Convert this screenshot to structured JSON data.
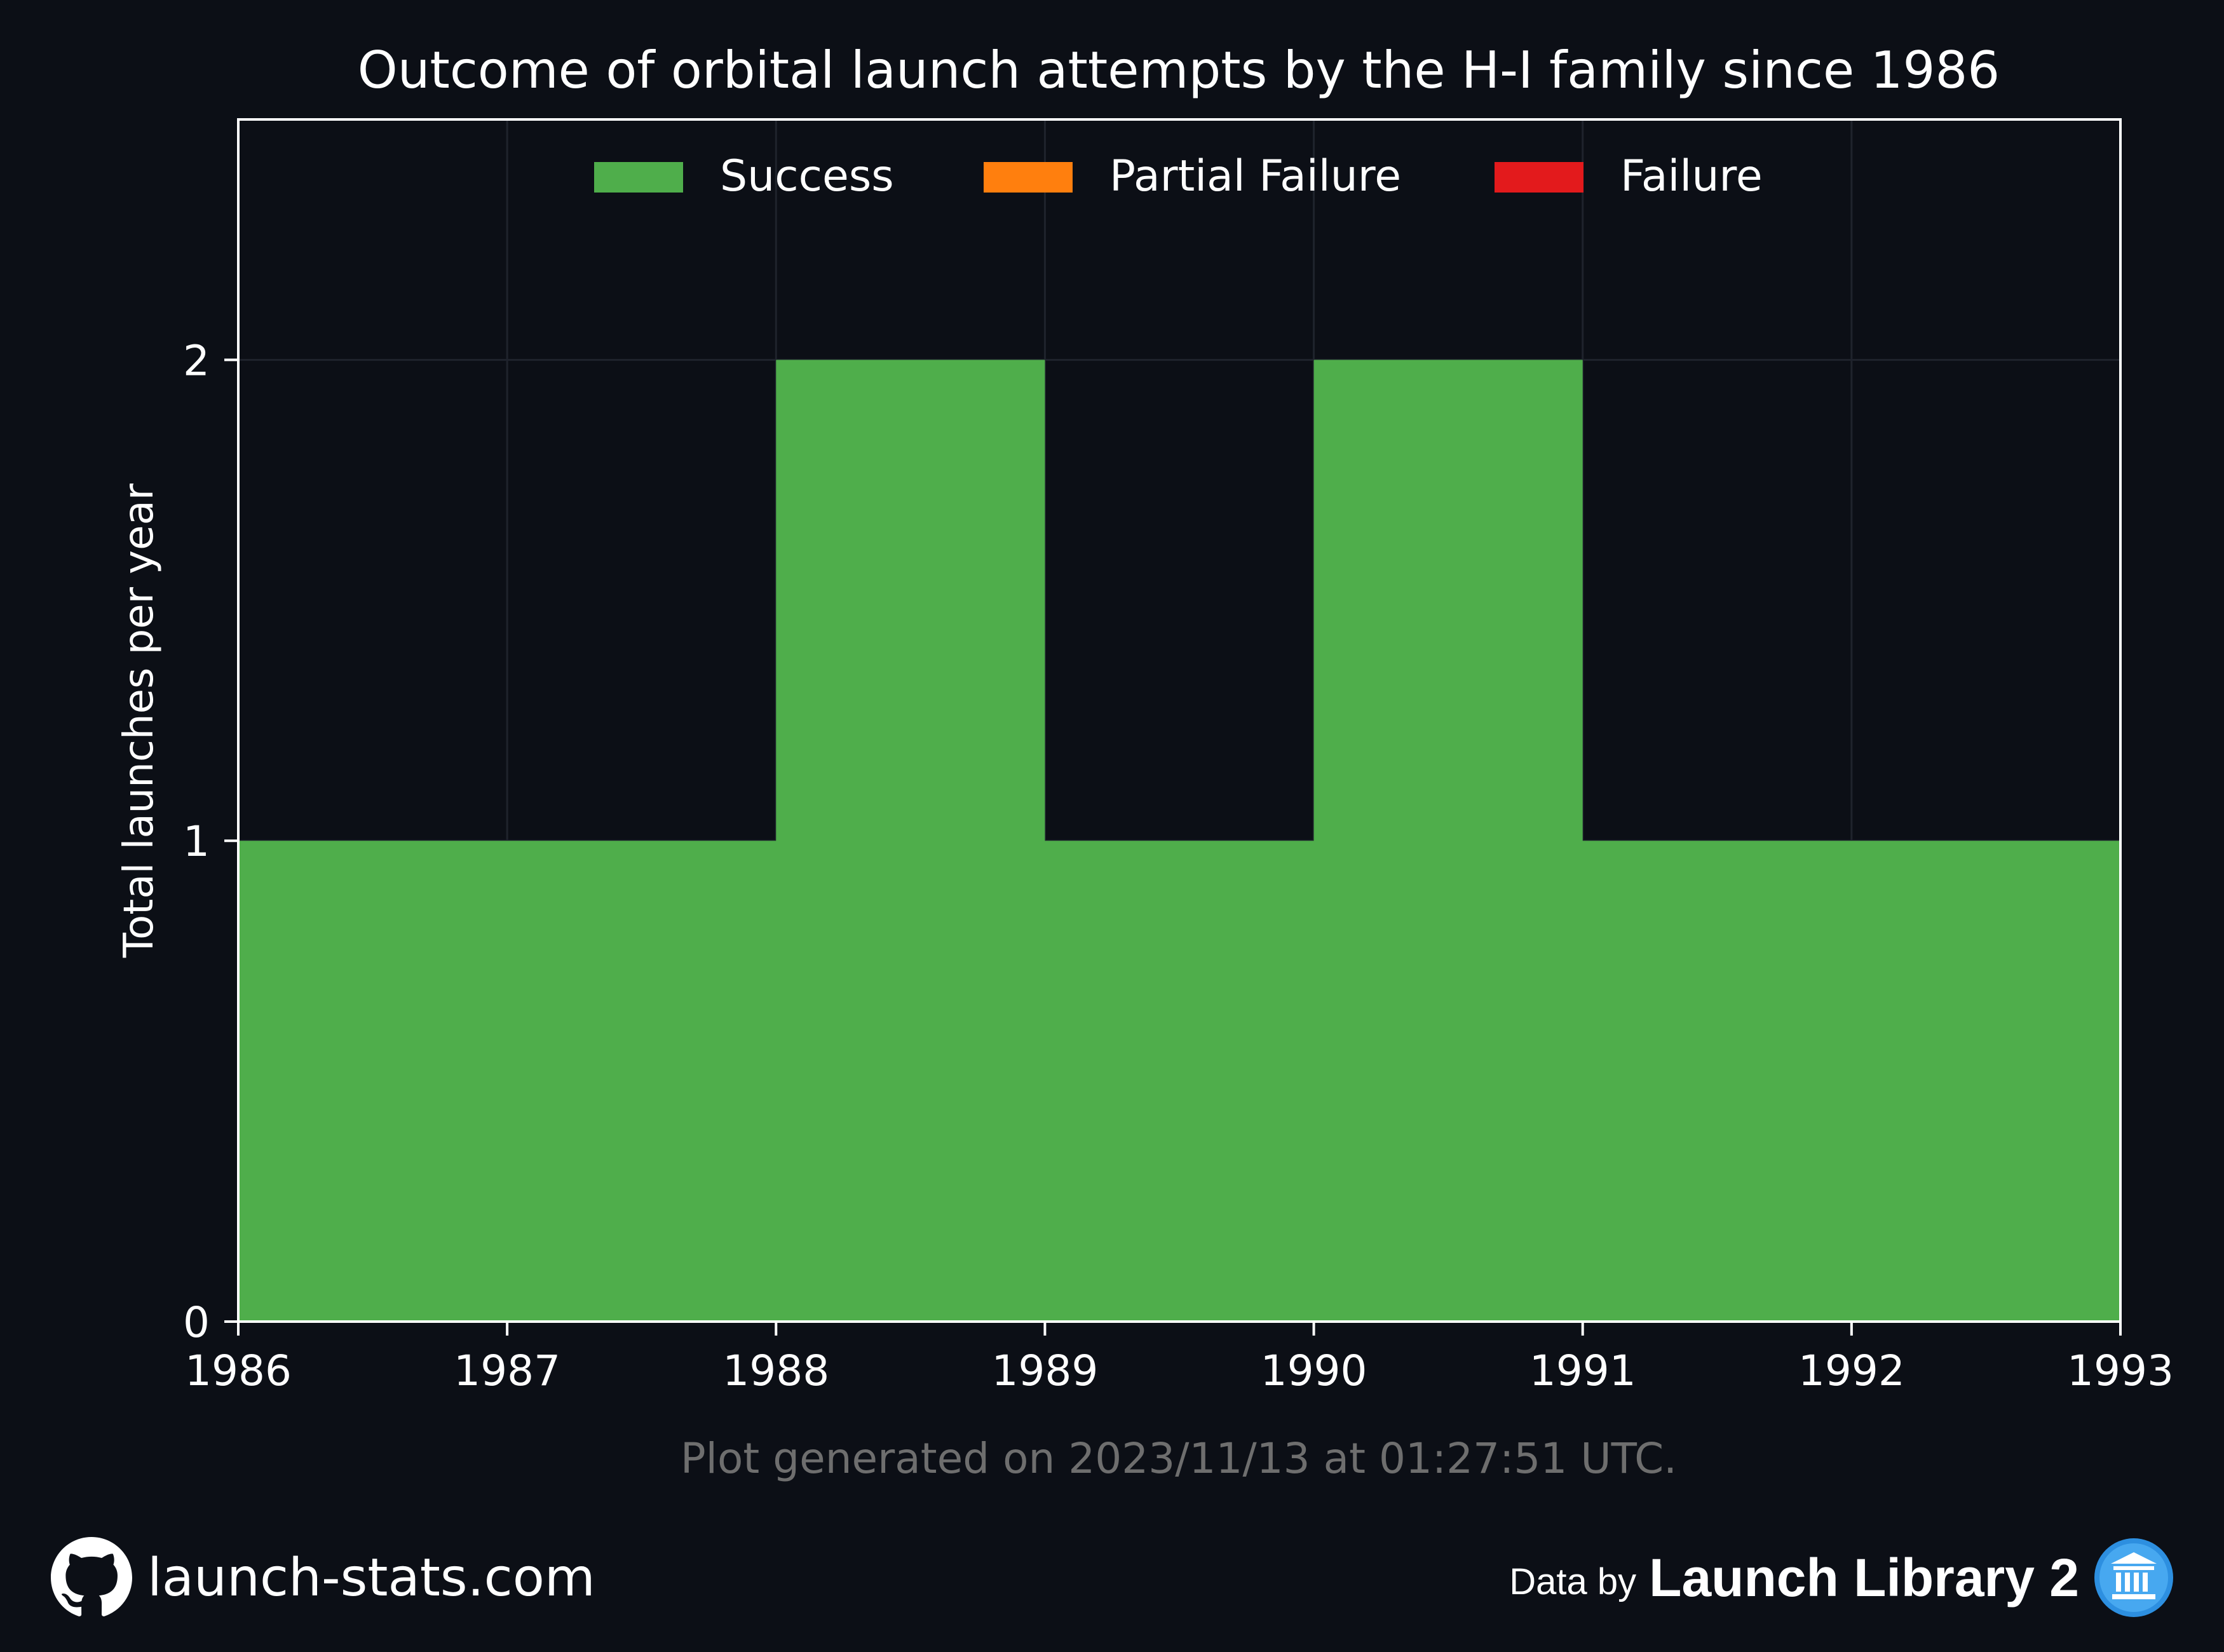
{
  "chart_data": {
    "type": "area",
    "step": true,
    "title": "Outcome of orbital launch attempts by the H-I family since 1986",
    "xlabel": "",
    "ylabel": "Total launches per year",
    "x_ticks": [
      "1986",
      "1987",
      "1988",
      "1989",
      "1990",
      "1991",
      "1992",
      "1993"
    ],
    "y_ticks": [
      "0",
      "1",
      "2"
    ],
    "xlim": [
      1986,
      1993
    ],
    "ylim": [
      0,
      2.5
    ],
    "grid": true,
    "legend_position": "top-center",
    "years": [
      1986,
      1987,
      1988,
      1989,
      1990,
      1991,
      1992
    ],
    "series": [
      {
        "name": "Success",
        "color": "#4fae4b",
        "values": [
          1,
          1,
          2,
          1,
          2,
          1,
          1
        ]
      },
      {
        "name": "Partial Failure",
        "color": "#ff7f0e",
        "values": [
          0,
          0,
          0,
          0,
          0,
          0,
          0
        ]
      },
      {
        "name": "Failure",
        "color": "#e31a1c",
        "values": [
          0,
          0,
          0,
          0,
          0,
          0,
          0
        ]
      }
    ]
  },
  "footer": {
    "generated": "Plot generated on 2023/11/13 at 01:27:51 UTC.",
    "site": "launch-stats.com",
    "data_by": "Data by",
    "library": "Launch Library 2",
    "github_icon": "github-icon",
    "library_icon": "launch-library-icon"
  }
}
